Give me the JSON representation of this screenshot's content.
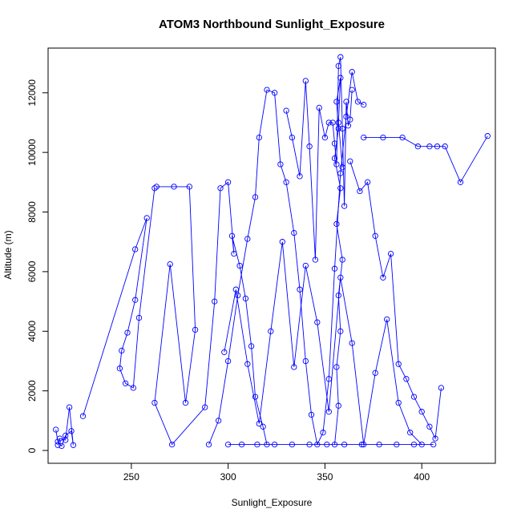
{
  "chart_data": {
    "type": "line",
    "title": "ATOM3 Northbound Sunlight_Exposure",
    "xlabel": "Sunlight_Exposure",
    "ylabel": "Altitude (m)",
    "xlim": [
      207,
      438
    ],
    "ylim": [
      -430,
      13500
    ],
    "x_ticks": [
      250,
      300,
      350,
      400
    ],
    "y_ticks": [
      0,
      2000,
      4000,
      6000,
      8000,
      10000,
      12000
    ],
    "marker": "open-circle",
    "line_color": "#0000ff",
    "grid": false,
    "series": [
      {
        "x": [
          211,
          212,
          214,
          216,
          219,
          220,
          218,
          216,
          213,
          212
        ],
        "y": [
          700,
          300,
          150,
          500,
          650,
          180,
          1450,
          350,
          400,
          180
        ]
      },
      {
        "x": [
          225,
          252,
          258,
          252,
          248,
          245,
          244,
          247,
          251,
          254,
          262
        ],
        "y": [
          1150,
          6750,
          7800,
          5050,
          3950,
          3350,
          2750,
          2250,
          2100,
          4450,
          8800
        ]
      },
      {
        "x": [
          263,
          272,
          280,
          283,
          278,
          270,
          262,
          271,
          288,
          293,
          296,
          300,
          303,
          302,
          306,
          309,
          312,
          314,
          318,
          320
        ],
        "y": [
          8850,
          8850,
          8850,
          4050,
          1600,
          6250,
          1600,
          200,
          1450,
          5000,
          8800,
          9000,
          6600,
          7200,
          6200,
          5100,
          3500,
          1800,
          800,
          200
        ]
      },
      {
        "x": [
          290,
          295,
          300,
          305,
          310,
          314,
          316,
          320,
          324,
          327,
          330,
          334,
          337,
          340,
          343,
          346,
          349,
          352,
          355,
          358,
          361,
          364,
          367,
          370
        ],
        "y": [
          200,
          1000,
          3000,
          5200,
          7100,
          8500,
          10500,
          12100,
          12000,
          9600,
          9000,
          7300,
          5400,
          3000,
          1200,
          200,
          600,
          2400,
          6100,
          9300,
          11200,
          12700,
          11700,
          11600
        ]
      },
      {
        "x": [
          330,
          333,
          337,
          340,
          342,
          345,
          347,
          350,
          352,
          354,
          355,
          356,
          357,
          358,
          359,
          360,
          361,
          362,
          363,
          364
        ],
        "y": [
          11400,
          10500,
          9200,
          12400,
          10200,
          6400,
          11500,
          10500,
          11000,
          11000,
          10300,
          9600,
          12900,
          13200,
          10800,
          8200,
          11700,
          10900,
          11100,
          12100
        ]
      },
      {
        "x": [
          370,
          380,
          390,
          398,
          404,
          408,
          412,
          420,
          434
        ],
        "y": [
          10500,
          10500,
          10500,
          10200,
          10200,
          10200,
          10200,
          9000,
          10550
        ]
      },
      {
        "x": [
          363,
          368,
          372,
          376,
          380,
          384,
          388,
          392,
          396,
          400,
          404,
          407,
          410
        ],
        "y": [
          9700,
          8700,
          9000,
          7200,
          5800,
          6600,
          2900,
          2400,
          1800,
          1300,
          800,
          400,
          2100
        ]
      },
      {
        "x": [
          355,
          357,
          356,
          358,
          357,
          359,
          356,
          358,
          355,
          357,
          356,
          358,
          357,
          359
        ],
        "y": [
          200,
          1500,
          2800,
          4000,
          5200,
          6400,
          7600,
          8800,
          9800,
          10800,
          11700,
          12500,
          11000,
          9500
        ]
      },
      {
        "x": [
          298,
          304,
          310,
          316,
          322,
          328,
          334,
          340,
          346,
          352,
          358,
          364,
          370,
          376,
          382,
          388,
          394,
          400
        ],
        "y": [
          3300,
          5400,
          2900,
          900,
          4000,
          7000,
          2800,
          6200,
          4300,
          1300,
          5800,
          3600,
          200,
          2600,
          4400,
          1600,
          600,
          200
        ]
      },
      {
        "x": [
          300,
          307,
          315,
          324,
          333,
          342,
          351,
          360,
          369,
          378,
          387,
          396,
          406
        ],
        "y": [
          200,
          200,
          200,
          200,
          200,
          200,
          200,
          200,
          200,
          200,
          200,
          200,
          200
        ]
      }
    ]
  }
}
